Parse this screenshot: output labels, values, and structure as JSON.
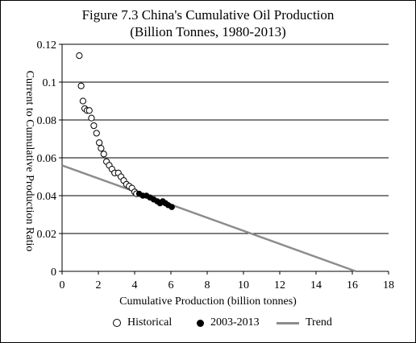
{
  "chart_data": {
    "type": "scatter",
    "title": "Figure 7.3 China's Cumulative Oil Production",
    "subtitle": "(Billion  Tonnes, 1980-2013)",
    "xlabel": "Cumulative Production (billion tonnes)",
    "ylabel": "Current to Cumulative Production Ratio",
    "xlim": [
      0,
      18
    ],
    "ylim": [
      0,
      0.12
    ],
    "x_ticks": [
      "0",
      "2",
      "4",
      "6",
      "8",
      "10",
      "12",
      "14",
      "16",
      "18"
    ],
    "y_ticks": [
      "0",
      "0.02",
      "0.04",
      "0.06",
      "0.08",
      "0.1",
      "0.12"
    ],
    "grid": "horizontal",
    "legend_position": "bottom",
    "series": [
      {
        "name": "Historical",
        "marker": "open-circle",
        "color": "#000000",
        "points": [
          [
            0.95,
            0.114
          ],
          [
            1.05,
            0.098
          ],
          [
            1.15,
            0.09
          ],
          [
            1.25,
            0.086
          ],
          [
            1.38,
            0.085
          ],
          [
            1.5,
            0.085
          ],
          [
            1.62,
            0.081
          ],
          [
            1.75,
            0.077
          ],
          [
            1.9,
            0.073
          ],
          [
            2.05,
            0.068
          ],
          [
            2.15,
            0.065
          ],
          [
            2.3,
            0.062
          ],
          [
            2.45,
            0.058
          ],
          [
            2.6,
            0.056
          ],
          [
            2.75,
            0.054
          ],
          [
            2.9,
            0.052
          ],
          [
            3.1,
            0.052
          ],
          [
            3.25,
            0.05
          ],
          [
            3.4,
            0.048
          ],
          [
            3.55,
            0.046
          ],
          [
            3.7,
            0.045
          ],
          [
            3.85,
            0.044
          ],
          [
            4.0,
            0.042
          ],
          [
            4.1,
            0.041
          ]
        ]
      },
      {
        "name": "2003-2013",
        "marker": "filled-circle",
        "color": "#000000",
        "points": [
          [
            4.25,
            0.041
          ],
          [
            4.45,
            0.04
          ],
          [
            4.65,
            0.04
          ],
          [
            4.85,
            0.039
          ],
          [
            5.05,
            0.038
          ],
          [
            5.25,
            0.037
          ],
          [
            5.4,
            0.036
          ],
          [
            5.55,
            0.037
          ],
          [
            5.7,
            0.036
          ],
          [
            5.85,
            0.035
          ],
          [
            6.05,
            0.034
          ]
        ]
      },
      {
        "name": "Trend",
        "marker": "line",
        "color": "#8c8c8c",
        "points": [
          [
            0,
            0.056
          ],
          [
            16.2,
            0
          ]
        ]
      }
    ]
  }
}
